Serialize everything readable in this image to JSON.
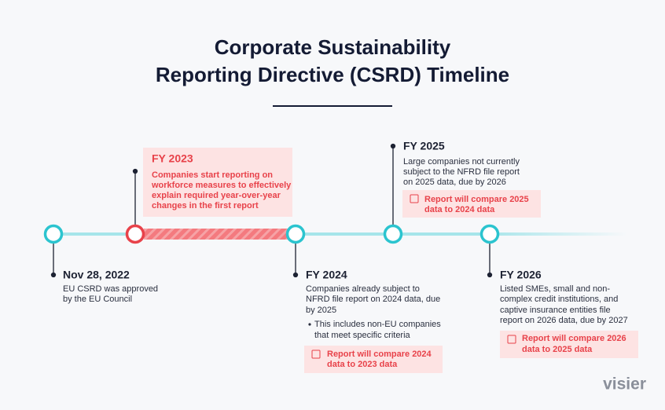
{
  "header": {
    "title": [
      "Corporate Sustainability",
      "Reporting Directive (CSRD) Timeline"
    ]
  },
  "events": [
    {
      "label": "Nov 28, 2022",
      "description": [
        "EU CSRD was approved",
        "by the EU Council"
      ]
    },
    {
      "label": "FY 2023",
      "description": [
        "Companies start reporting on",
        "workforce measures to effectively",
        "explain required year-over-year",
        "changes in the first report"
      ]
    },
    {
      "label": "FY 2024",
      "description": [
        "Companies already subject to",
        "NFRD file report on 2024 data, due",
        "by 2025"
      ],
      "bullet": [
        "This includes non-EU companies",
        "that meet specific criteria"
      ],
      "note": [
        "Report will compare 2024",
        "data to 2023 data"
      ]
    },
    {
      "label": "FY 2025",
      "description": [
        "Large companies not currently",
        "subject to the NFRD file report",
        "on 2025 data, due by 2026"
      ],
      "note": [
        "Report will compare 2025",
        "data to 2024 data"
      ]
    },
    {
      "label": "FY 2026",
      "description": [
        "Listed SMEs, small and non-",
        "complex credit institutions, and",
        "captive insurance entities file",
        "report on 2026 data, due by 2027"
      ],
      "note": [
        "Report will compare 2026",
        "data to 2025 data"
      ]
    }
  ],
  "logo": "visier"
}
